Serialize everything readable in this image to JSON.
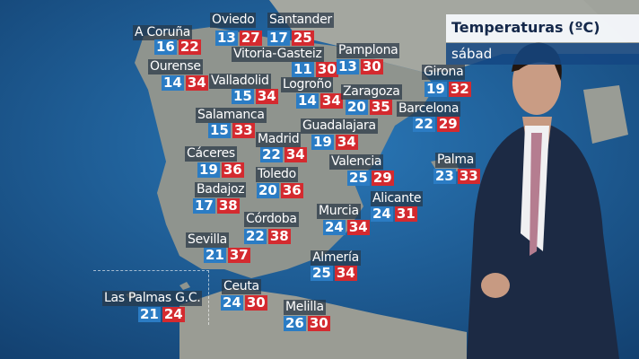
{
  "header": {
    "title": "Temperaturas (ºC)",
    "day": "sábad"
  },
  "colors": {
    "min": "#2b7cc4",
    "max": "#d42a2f",
    "sea": "#1d5a8e",
    "land": "#8f948e"
  },
  "cities": [
    {
      "name": "A Coruña",
      "min": "16",
      "max": "22"
    },
    {
      "name": "Oviedo",
      "min": "13",
      "max": "27"
    },
    {
      "name": "Santander",
      "min": "17",
      "max": "25"
    },
    {
      "name": "Vitoria-Gasteiz",
      "min": "11",
      "max": "30"
    },
    {
      "name": "Pamplona",
      "min": "13",
      "max": "30"
    },
    {
      "name": "Ourense",
      "min": "14",
      "max": "34"
    },
    {
      "name": "Valladolid",
      "min": "15",
      "max": "34"
    },
    {
      "name": "Logroño",
      "min": "14",
      "max": "34"
    },
    {
      "name": "Zaragoza",
      "min": "20",
      "max": "35"
    },
    {
      "name": "Girona",
      "min": "19",
      "max": "32"
    },
    {
      "name": "Barcelona",
      "min": "22",
      "max": "29"
    },
    {
      "name": "Salamanca",
      "min": "15",
      "max": "33"
    },
    {
      "name": "Guadalajara",
      "min": "19",
      "max": "34"
    },
    {
      "name": "Madrid",
      "min": "22",
      "max": "34"
    },
    {
      "name": "Cáceres",
      "min": "19",
      "max": "36"
    },
    {
      "name": "Valencia",
      "min": "25",
      "max": "29"
    },
    {
      "name": "Toledo",
      "min": "20",
      "max": "36"
    },
    {
      "name": "Badajoz",
      "min": "17",
      "max": "38"
    },
    {
      "name": "Palma",
      "min": "23",
      "max": "33"
    },
    {
      "name": "Alicante",
      "min": "24",
      "max": "31"
    },
    {
      "name": "Córdoba",
      "min": "22",
      "max": "38"
    },
    {
      "name": "Murcia",
      "min": "24",
      "max": "34"
    },
    {
      "name": "Sevilla",
      "min": "21",
      "max": "37"
    },
    {
      "name": "Almería",
      "min": "25",
      "max": "34"
    },
    {
      "name": "Las Palmas G.C.",
      "min": "21",
      "max": "24"
    },
    {
      "name": "Ceuta",
      "min": "24",
      "max": "30"
    },
    {
      "name": "Melilla",
      "min": "26",
      "max": "30"
    }
  ]
}
